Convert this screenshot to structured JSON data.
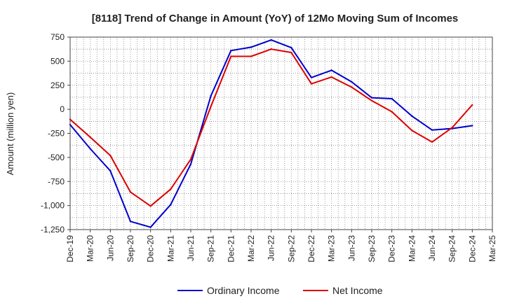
{
  "chart_data": {
    "type": "line",
    "title": "[8118]  Trend of Change in Amount (YoY) of 12Mo Moving Sum of Incomes",
    "xlabel": "",
    "ylabel": "Amount (million yen)",
    "ylim": [
      -1250,
      750
    ],
    "yticks": [
      750,
      500,
      250,
      0,
      -250,
      -500,
      -750,
      -1000,
      -1250
    ],
    "ytick_labels": [
      "750",
      "500",
      "250",
      "0",
      "-250",
      "-500",
      "-750",
      "-1,000",
      "-1,250"
    ],
    "categories": [
      "Dec-19",
      "Mar-20",
      "Jun-20",
      "Sep-20",
      "Dec-20",
      "Mar-21",
      "Jun-21",
      "Sep-21",
      "Dec-21",
      "Mar-22",
      "Jun-22",
      "Sep-22",
      "Dec-22",
      "Mar-23",
      "Jun-23",
      "Sep-23",
      "Dec-23",
      "Mar-24",
      "Jun-24",
      "Sep-24",
      "Dec-24",
      "Mar-25"
    ],
    "grid": true,
    "legend_position": "bottom-center",
    "series": [
      {
        "name": "Ordinary Income",
        "color": "#0000cc",
        "values": [
          -160,
          -410,
          -640,
          -1165,
          -1225,
          -990,
          -570,
          140,
          610,
          645,
          720,
          640,
          330,
          405,
          285,
          120,
          110,
          -70,
          -215,
          -200,
          -170,
          null
        ]
      },
      {
        "name": "Net Income",
        "color": "#dd0000",
        "values": [
          -105,
          -290,
          -480,
          -860,
          -1005,
          -830,
          -520,
          30,
          550,
          550,
          625,
          590,
          265,
          335,
          230,
          90,
          -25,
          -220,
          -340,
          -190,
          45,
          null
        ]
      }
    ]
  }
}
